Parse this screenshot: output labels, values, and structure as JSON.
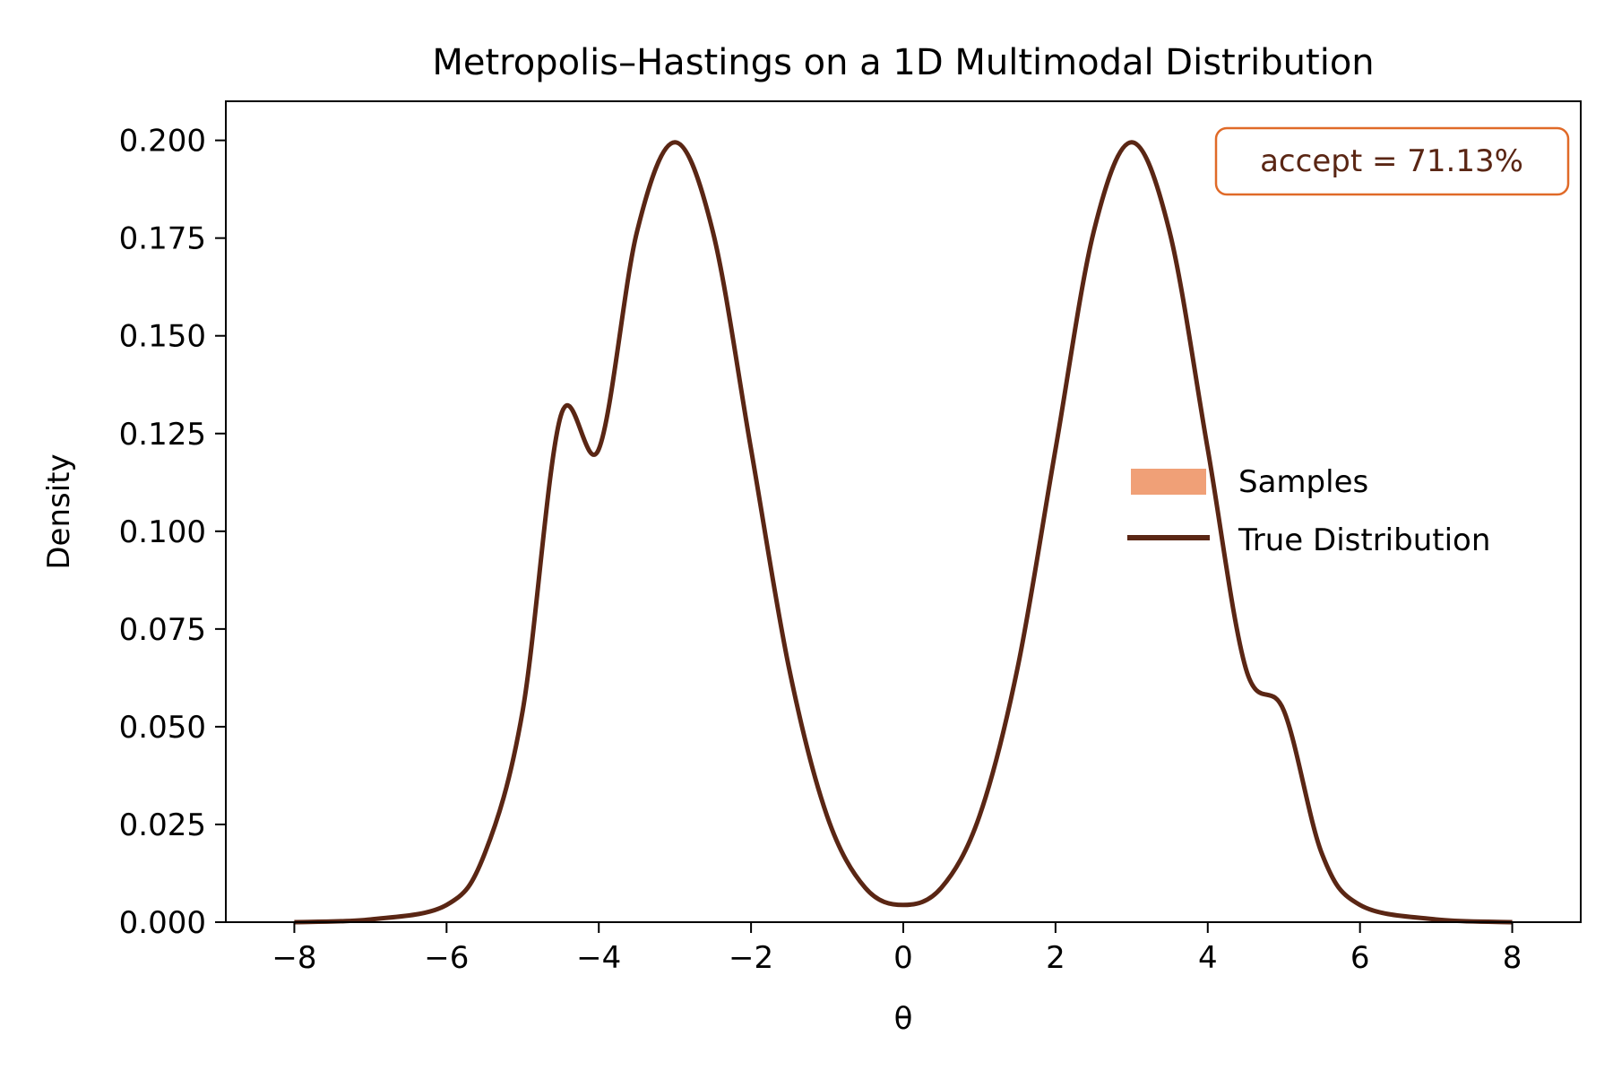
{
  "colors": {
    "line": "#5a2614",
    "samples": "#f0a077",
    "annotation_border": "#e06a28",
    "annotation_text": "#5a2614",
    "axes": "#000000"
  },
  "chart_data": {
    "type": "line",
    "title": "Metropolis–Hastings on a 1D Multimodal Distribution",
    "xlabel": "θ",
    "ylabel": "Density",
    "xlim": [
      -8.9,
      8.9
    ],
    "ylim": [
      0,
      0.21
    ],
    "x_ticks": [
      -8,
      -6,
      -4,
      -2,
      0,
      2,
      4,
      6,
      8
    ],
    "x_tick_labels": [
      "−8",
      "−6",
      "−4",
      "−2",
      "0",
      "2",
      "4",
      "6",
      "8"
    ],
    "y_ticks": [
      0,
      0.025,
      0.05,
      0.075,
      0.1,
      0.125,
      0.15,
      0.175,
      0.2
    ],
    "y_tick_labels": [
      "0.000",
      "0.025",
      "0.050",
      "0.075",
      "0.100",
      "0.125",
      "0.150",
      "0.175",
      "0.200"
    ],
    "grid": false,
    "legend_position": "center-right",
    "annotation": "accept = 71.13%",
    "series": [
      {
        "name": "True Distribution",
        "kind": "line",
        "x": [
          -8,
          -7,
          -6,
          -5.5,
          -5,
          -4.5,
          -4,
          -3.5,
          -3,
          -2.5,
          -2,
          -1.5,
          -1,
          -0.5,
          0,
          0.5,
          1,
          1.5,
          2,
          2.5,
          3,
          3.5,
          4,
          4.5,
          5,
          5.5,
          6,
          7,
          8
        ],
        "y": [
          0.0,
          0.0007,
          0.0044,
          0.0175,
          0.0541,
          0.1295,
          0.121,
          0.1765,
          0.1995,
          0.1765,
          0.121,
          0.0649,
          0.0271,
          0.0088,
          0.0044,
          0.0088,
          0.0271,
          0.0649,
          0.121,
          0.1765,
          0.1995,
          0.1765,
          0.121,
          0.0649,
          0.0541,
          0.0175,
          0.0044,
          0.0007,
          0.0
        ]
      },
      {
        "name": "Samples",
        "kind": "histogram",
        "values": []
      }
    ]
  }
}
